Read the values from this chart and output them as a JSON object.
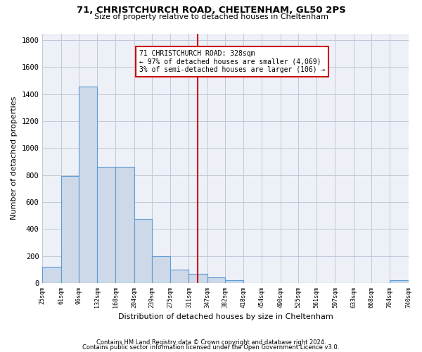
{
  "title1": "71, CHRISTCHURCH ROAD, CHELTENHAM, GL50 2PS",
  "title2": "Size of property relative to detached houses in Cheltenham",
  "xlabel": "Distribution of detached houses by size in Cheltenham",
  "ylabel": "Number of detached properties",
  "footer1": "Contains HM Land Registry data © Crown copyright and database right 2024.",
  "footer2": "Contains public sector information licensed under the Open Government Licence v3.0.",
  "annotation_title": "71 CHRISTCHURCH ROAD: 328sqm",
  "annotation_line1": "← 97% of detached houses are smaller (4,069)",
  "annotation_line2": "3% of semi-detached houses are larger (106) →",
  "vline_x": 328,
  "bar_color": "#cdd9e8",
  "bar_edge_color": "#5b9bd5",
  "vline_color": "#cc0000",
  "annotation_box_color": "#cc0000",
  "background_color": "#eef0f8",
  "grid_color": "#c0c8d8",
  "bin_edges": [
    25,
    61,
    96,
    132,
    168,
    204,
    239,
    275,
    311,
    347,
    382,
    418,
    454,
    490,
    525,
    561,
    597,
    633,
    668,
    704,
    740
  ],
  "bar_heights": [
    120,
    795,
    1455,
    862,
    862,
    473,
    200,
    100,
    65,
    40,
    20,
    0,
    0,
    0,
    0,
    0,
    0,
    0,
    0,
    20
  ],
  "ylim": [
    0,
    1850
  ],
  "yticks": [
    0,
    200,
    400,
    600,
    800,
    1000,
    1200,
    1400,
    1600,
    1800
  ]
}
